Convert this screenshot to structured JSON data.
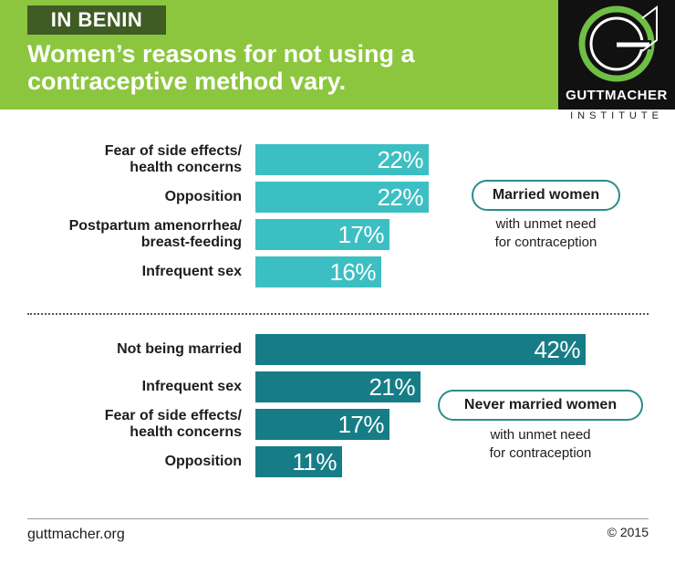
{
  "header": {
    "tag": "IN BENIN",
    "headline_line1": "Women’s reasons for not using a",
    "headline_line2": "contraceptive method vary."
  },
  "logo": {
    "wordmark": "GUTTMACHER",
    "subtitle": "INSTITUTE"
  },
  "legend": {
    "group1_title": "Married women",
    "group1_note_line1": "with unmet need",
    "group1_note_line2": "for contraception",
    "group2_title": "Never married women",
    "group2_note_line1": "with unmet need",
    "group2_note_line2": "for contraception"
  },
  "footer": {
    "site": "guttmacher.org",
    "copyright": "© 2015"
  },
  "colors": {
    "group1_bar": "#3cbfc3",
    "group2_bar": "#167d87",
    "header_bg": "#8cc63f",
    "tag_bg": "#3f5c24"
  },
  "chart_data": [
    {
      "type": "bar",
      "orientation": "horizontal",
      "group": "Married women",
      "categories": [
        [
          "Fear of side effects/",
          "health concerns"
        ],
        [
          "Opposition"
        ],
        [
          "Postpartum amenorrhea/",
          "breast-feeding"
        ],
        [
          "Infrequent sex"
        ]
      ],
      "values": [
        22,
        22,
        17,
        16
      ],
      "value_labels": [
        "22%",
        "22%",
        "17%",
        "16%"
      ],
      "unit": "%"
    },
    {
      "type": "bar",
      "orientation": "horizontal",
      "group": "Never married women",
      "categories": [
        [
          "Not being married"
        ],
        [
          "Infrequent sex"
        ],
        [
          "Fear of side effects/",
          "health concerns"
        ],
        [
          "Opposition"
        ]
      ],
      "values": [
        42,
        21,
        17,
        11
      ],
      "value_labels": [
        "42%",
        "21%",
        "17%",
        "11%"
      ],
      "unit": "%"
    }
  ]
}
